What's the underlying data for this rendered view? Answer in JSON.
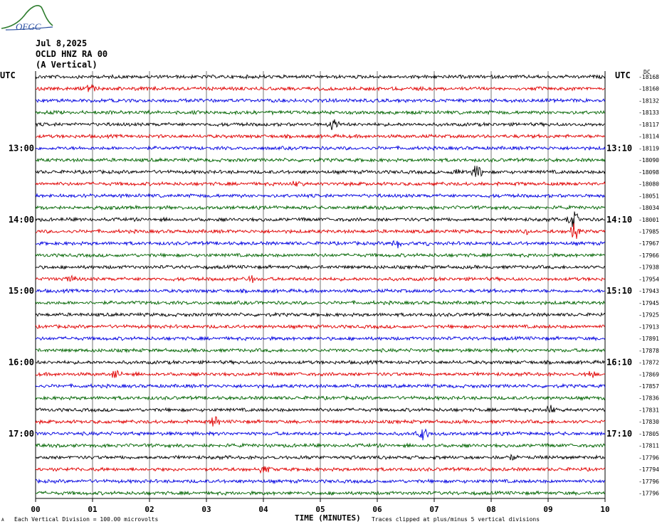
{
  "header": {
    "logo_text": "OFGC",
    "date": "Jul 8,2025",
    "station": "OCLD HNZ RA 00",
    "component": "(A Vertical)",
    "utc_left": "UTC",
    "utc_right": "UTC",
    "dc_label": "DC"
  },
  "footer": {
    "vertical_division": "Each Vertical Division =  100.00 microvolts",
    "clip_note": "Traces clipped at plus/minus 5 vertical divisions",
    "mark": "A"
  },
  "colors": {
    "trace_cycle": [
      "#000000",
      "#e00000",
      "#0000e0",
      "#006400"
    ],
    "grid": "#000000",
    "logo_green": "#2f7d2f",
    "logo_blue": "#2a4fa0"
  },
  "chart_data": {
    "type": "line",
    "description_kind": "helicorder",
    "xlabel": "TIME (MINUTES)",
    "x_ticks": [
      "00",
      "01",
      "02",
      "03",
      "04",
      "05",
      "06",
      "07",
      "08",
      "09",
      "10"
    ],
    "xlim": [
      0,
      10
    ],
    "left_time_labels": [
      {
        "row": 6,
        "label": "13:00"
      },
      {
        "row": 12,
        "label": "14:00"
      },
      {
        "row": 18,
        "label": "15:00"
      },
      {
        "row": 24,
        "label": "16:00"
      },
      {
        "row": 30,
        "label": "17:00"
      }
    ],
    "right_time_labels": [
      {
        "row": 6,
        "label": "13:10"
      },
      {
        "row": 12,
        "label": "14:10"
      },
      {
        "row": 18,
        "label": "15:10"
      },
      {
        "row": 24,
        "label": "16:10"
      },
      {
        "row": 30,
        "label": "17:10"
      }
    ],
    "dc_offsets": [
      "-18168",
      "-18160",
      "-18132",
      "-18133",
      "-18117",
      "-18114",
      "-18119",
      "-18090",
      "-18098",
      "-18080",
      "-18051",
      "-18034",
      "-18001",
      "-17985",
      "-17967",
      "-17966",
      "-17938",
      "-17954",
      "-17943",
      "-17945",
      "-17925",
      "-17913",
      "-17891",
      "-17878",
      "-17872",
      "-17869",
      "-17857",
      "-17836",
      "-17831",
      "-17830",
      "-17805",
      "-17811",
      "-17796",
      "-17794",
      "-17796",
      "-17796"
    ],
    "events": [
      {
        "row": 1,
        "minute": 0.95,
        "amp": 2.2
      },
      {
        "row": 4,
        "minute": 5.25,
        "amp": 3.0
      },
      {
        "row": 8,
        "minute": 7.75,
        "amp": 3.5
      },
      {
        "row": 8,
        "minute": 7.4,
        "amp": 1.6
      },
      {
        "row": 9,
        "minute": 4.6,
        "amp": 1.8
      },
      {
        "row": 12,
        "minute": 9.45,
        "amp": 4.0
      },
      {
        "row": 13,
        "minute": 9.45,
        "amp": 4.5
      },
      {
        "row": 13,
        "minute": 8.6,
        "amp": 2.0
      },
      {
        "row": 14,
        "minute": 6.35,
        "amp": 2.5
      },
      {
        "row": 14,
        "minute": 6.85,
        "amp": 1.4
      },
      {
        "row": 17,
        "minute": 3.75,
        "amp": 2.5
      },
      {
        "row": 17,
        "minute": 0.6,
        "amp": 1.6
      },
      {
        "row": 25,
        "minute": 1.4,
        "amp": 1.8
      },
      {
        "row": 25,
        "minute": 9.75,
        "amp": 1.4
      },
      {
        "row": 28,
        "minute": 9.05,
        "amp": 2.2
      },
      {
        "row": 29,
        "minute": 3.15,
        "amp": 2.4
      },
      {
        "row": 30,
        "minute": 6.8,
        "amp": 2.8
      },
      {
        "row": 32,
        "minute": 8.4,
        "amp": 1.6
      },
      {
        "row": 33,
        "minute": 4.0,
        "amp": 1.8
      }
    ]
  }
}
